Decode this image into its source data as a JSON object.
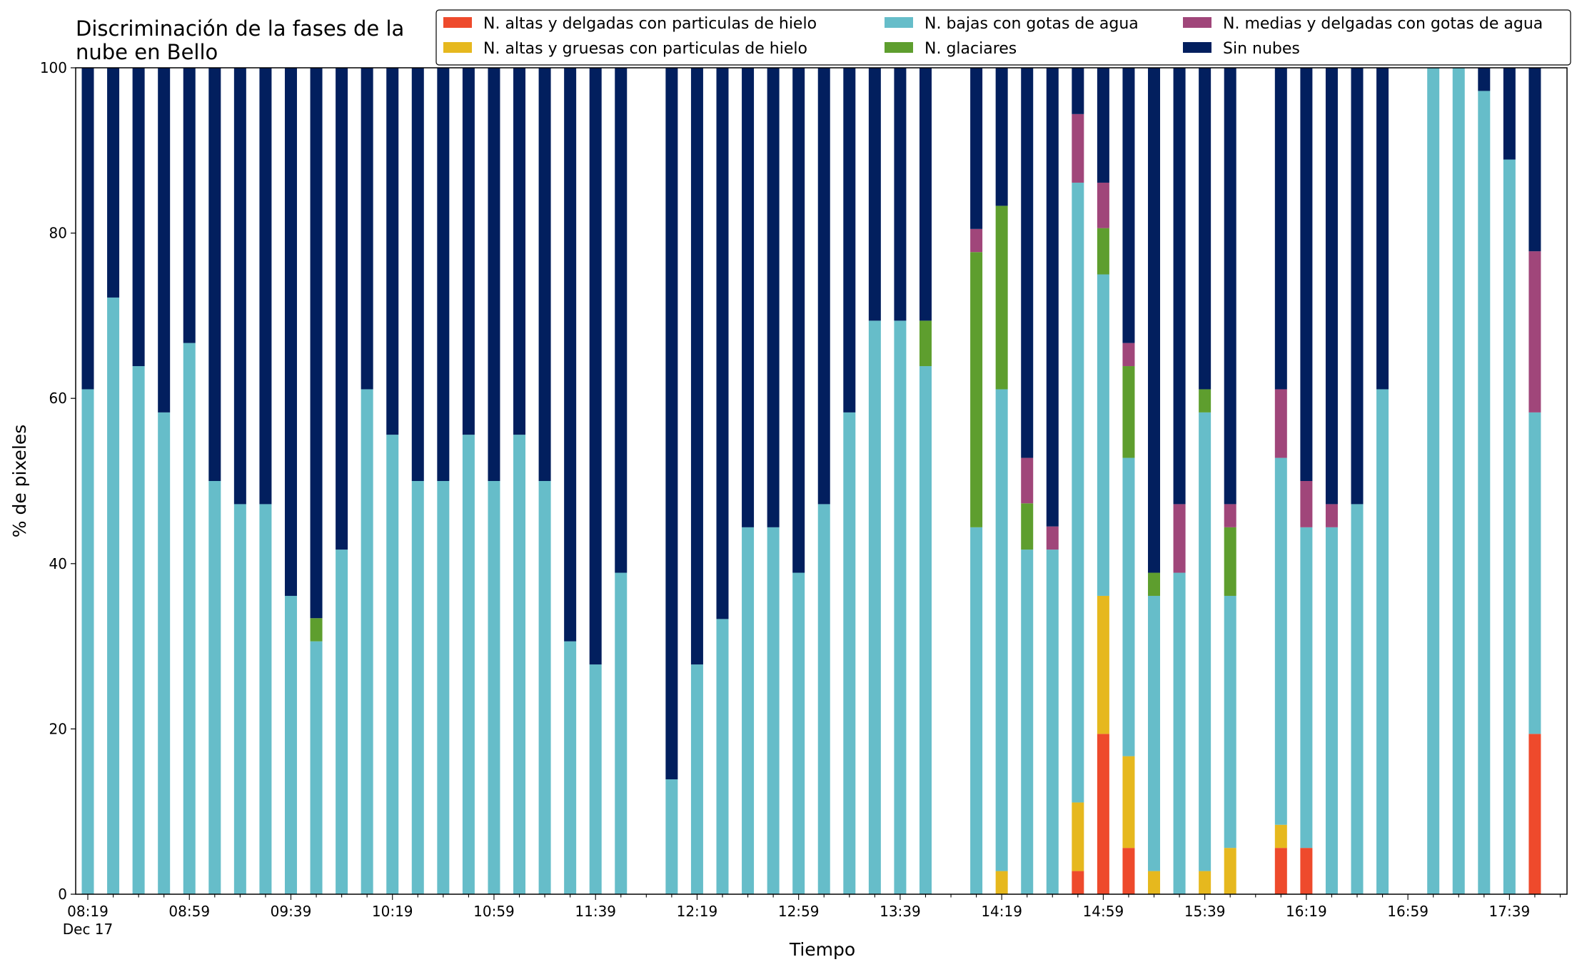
{
  "chart_data": {
    "type": "bar",
    "stacked": true,
    "title_lines": [
      "Discriminación de la fases de la",
      "nube en Bello"
    ],
    "xlabel": "Tiempo",
    "ylabel": "% de pixeles",
    "ylim": [
      0,
      100
    ],
    "y_ticks": [
      0,
      20,
      40,
      60,
      80,
      100
    ],
    "x_start": "08:19",
    "x_step_minutes": 10,
    "x_slot_count": 59,
    "x_tick_labels": [
      {
        "slot": 0,
        "label": "08:19",
        "sublabel": "Dec 17"
      },
      {
        "slot": 4,
        "label": "08:59"
      },
      {
        "slot": 8,
        "label": "09:39"
      },
      {
        "slot": 12,
        "label": "10:19"
      },
      {
        "slot": 16,
        "label": "10:59"
      },
      {
        "slot": 20,
        "label": "11:39"
      },
      {
        "slot": 24,
        "label": "12:19"
      },
      {
        "slot": 28,
        "label": "12:59"
      },
      {
        "slot": 32,
        "label": "13:39"
      },
      {
        "slot": 36,
        "label": "14:19"
      },
      {
        "slot": 40,
        "label": "14:59"
      },
      {
        "slot": 44,
        "label": "15:39"
      },
      {
        "slot": 48,
        "label": "16:19"
      },
      {
        "slot": 52,
        "label": "16:59"
      },
      {
        "slot": 56,
        "label": "17:39"
      }
    ],
    "legend_placement": "top-right",
    "series": [
      {
        "name": "N. altas y delgadas con particulas de hielo",
        "color": "#ee4a2c"
      },
      {
        "name": "N. altas y gruesas con particulas de hielo",
        "color": "#e6b81e"
      },
      {
        "name": "N. bajas con gotas de agua",
        "color": "#66bdc9"
      },
      {
        "name": "N. glaciares",
        "color": "#5e9e2e"
      },
      {
        "name": "N. medias y delgadas con gotas de agua",
        "color": "#a0467a"
      },
      {
        "name": "Sin nubes",
        "color": "#021f5e"
      }
    ],
    "bars": [
      {
        "time": "08:19",
        "values": [
          0,
          0,
          61.1,
          0,
          0,
          38.9
        ]
      },
      {
        "time": "08:29",
        "values": [
          0,
          0,
          72.2,
          0,
          0,
          27.8
        ]
      },
      {
        "time": "08:39",
        "values": [
          0,
          0,
          63.9,
          0,
          0,
          36.1
        ]
      },
      {
        "time": "08:49",
        "values": [
          0,
          0,
          58.3,
          0,
          0,
          41.7
        ]
      },
      {
        "time": "08:59",
        "values": [
          0,
          0,
          66.7,
          0,
          0,
          33.3
        ]
      },
      {
        "time": "09:09",
        "values": [
          0,
          0,
          50.0,
          0,
          0,
          50.0
        ]
      },
      {
        "time": "09:19",
        "values": [
          0,
          0,
          47.2,
          0,
          0,
          52.8
        ]
      },
      {
        "time": "09:29",
        "values": [
          0,
          0,
          47.2,
          0,
          0,
          52.8
        ]
      },
      {
        "time": "09:39",
        "values": [
          0,
          0,
          36.1,
          0,
          0,
          63.9
        ]
      },
      {
        "time": "09:49",
        "values": [
          0,
          0,
          30.6,
          2.8,
          0,
          66.6
        ]
      },
      {
        "time": "09:59",
        "values": [
          0,
          0,
          41.7,
          0,
          0,
          58.3
        ]
      },
      {
        "time": "10:09",
        "values": [
          0,
          0,
          61.1,
          0,
          0,
          38.9
        ]
      },
      {
        "time": "10:19",
        "values": [
          0,
          0,
          55.6,
          0,
          0,
          44.4
        ]
      },
      {
        "time": "10:29",
        "values": [
          0,
          0,
          50.0,
          0,
          0,
          50.0
        ]
      },
      {
        "time": "10:39",
        "values": [
          0,
          0,
          50.0,
          0,
          0,
          50.0
        ]
      },
      {
        "time": "10:49",
        "values": [
          0,
          0,
          55.6,
          0,
          0,
          44.4
        ]
      },
      {
        "time": "10:59",
        "values": [
          0,
          0,
          50.0,
          0,
          0,
          50.0
        ]
      },
      {
        "time": "11:09",
        "values": [
          0,
          0,
          55.6,
          0,
          0,
          44.4
        ]
      },
      {
        "time": "11:19",
        "values": [
          0,
          0,
          50.0,
          0,
          0,
          50.0
        ]
      },
      {
        "time": "11:29",
        "values": [
          0,
          0,
          30.6,
          0,
          0,
          69.4
        ]
      },
      {
        "time": "11:39",
        "values": [
          0,
          0,
          27.8,
          0,
          0,
          72.2
        ]
      },
      {
        "time": "11:49",
        "values": [
          0,
          0,
          38.9,
          0,
          0,
          61.1
        ]
      },
      {
        "time": "11:59",
        "values": null
      },
      {
        "time": "12:09",
        "values": [
          0,
          0,
          13.9,
          0,
          0,
          86.1
        ]
      },
      {
        "time": "12:19",
        "values": [
          0,
          0,
          27.8,
          0,
          0,
          72.2
        ]
      },
      {
        "time": "12:29",
        "values": [
          0,
          0,
          33.3,
          0,
          0,
          66.7
        ]
      },
      {
        "time": "12:39",
        "values": [
          0,
          0,
          44.4,
          0,
          0,
          55.6
        ]
      },
      {
        "time": "12:49",
        "values": [
          0,
          0,
          44.4,
          0,
          0,
          55.6
        ]
      },
      {
        "time": "12:59",
        "values": [
          0,
          0,
          38.9,
          0,
          0,
          61.1
        ]
      },
      {
        "time": "13:09",
        "values": [
          0,
          0,
          47.2,
          0,
          0,
          52.8
        ]
      },
      {
        "time": "13:19",
        "values": [
          0,
          0,
          58.3,
          0,
          0,
          41.7
        ]
      },
      {
        "time": "13:29",
        "values": [
          0,
          0,
          69.4,
          0,
          0,
          30.6
        ]
      },
      {
        "time": "13:39",
        "values": [
          0,
          0,
          69.4,
          0,
          0,
          30.6
        ]
      },
      {
        "time": "13:49",
        "values": [
          0,
          0,
          63.9,
          5.5,
          0,
          30.6
        ]
      },
      {
        "time": "13:59",
        "values": null
      },
      {
        "time": "14:09",
        "values": [
          0,
          0,
          44.4,
          33.3,
          2.8,
          19.5
        ]
      },
      {
        "time": "14:19",
        "values": [
          0,
          2.8,
          58.3,
          22.2,
          0,
          16.7
        ]
      },
      {
        "time": "14:29",
        "values": [
          0,
          0,
          41.7,
          5.6,
          5.5,
          47.2
        ]
      },
      {
        "time": "14:39",
        "values": [
          0,
          0,
          41.7,
          0,
          2.8,
          55.5
        ]
      },
      {
        "time": "14:49",
        "values": [
          2.8,
          8.3,
          75.0,
          0,
          8.3,
          5.6
        ]
      },
      {
        "time": "14:59",
        "values": [
          19.4,
          16.7,
          38.9,
          5.6,
          5.5,
          13.9
        ]
      },
      {
        "time": "15:09",
        "values": [
          5.6,
          11.1,
          36.1,
          11.1,
          2.8,
          33.3
        ]
      },
      {
        "time": "15:19",
        "values": [
          0,
          2.8,
          33.3,
          2.8,
          0,
          61.1
        ]
      },
      {
        "time": "15:29",
        "values": [
          0,
          0,
          38.9,
          0,
          8.3,
          52.8
        ]
      },
      {
        "time": "15:39",
        "values": [
          0,
          2.8,
          55.5,
          2.8,
          0,
          38.9
        ]
      },
      {
        "time": "15:49",
        "values": [
          0,
          5.6,
          30.5,
          8.3,
          2.8,
          52.8
        ]
      },
      {
        "time": "15:59",
        "values": null
      },
      {
        "time": "16:09",
        "values": [
          5.6,
          2.8,
          44.4,
          0,
          8.3,
          38.9
        ]
      },
      {
        "time": "16:19",
        "values": [
          5.6,
          0,
          38.8,
          0,
          5.6,
          50.0
        ]
      },
      {
        "time": "16:29",
        "values": [
          0,
          0,
          44.4,
          0,
          2.8,
          52.8
        ]
      },
      {
        "time": "16:39",
        "values": [
          0,
          0,
          47.2,
          0,
          0,
          52.8
        ]
      },
      {
        "time": "16:49",
        "values": [
          0,
          0,
          61.1,
          0,
          0,
          38.9
        ]
      },
      {
        "time": "16:59",
        "values": null
      },
      {
        "time": "17:09",
        "values": [
          0,
          0,
          100.0,
          0,
          0,
          0
        ]
      },
      {
        "time": "17:19",
        "values": [
          0,
          0,
          100.0,
          0,
          0,
          0
        ]
      },
      {
        "time": "17:29",
        "values": [
          0,
          0,
          97.2,
          0,
          0,
          2.8
        ]
      },
      {
        "time": "17:39",
        "values": [
          0,
          0,
          88.9,
          0,
          0,
          11.1
        ]
      },
      {
        "time": "17:49",
        "values": [
          19.4,
          0,
          38.9,
          0,
          19.5,
          22.2
        ]
      }
    ]
  }
}
